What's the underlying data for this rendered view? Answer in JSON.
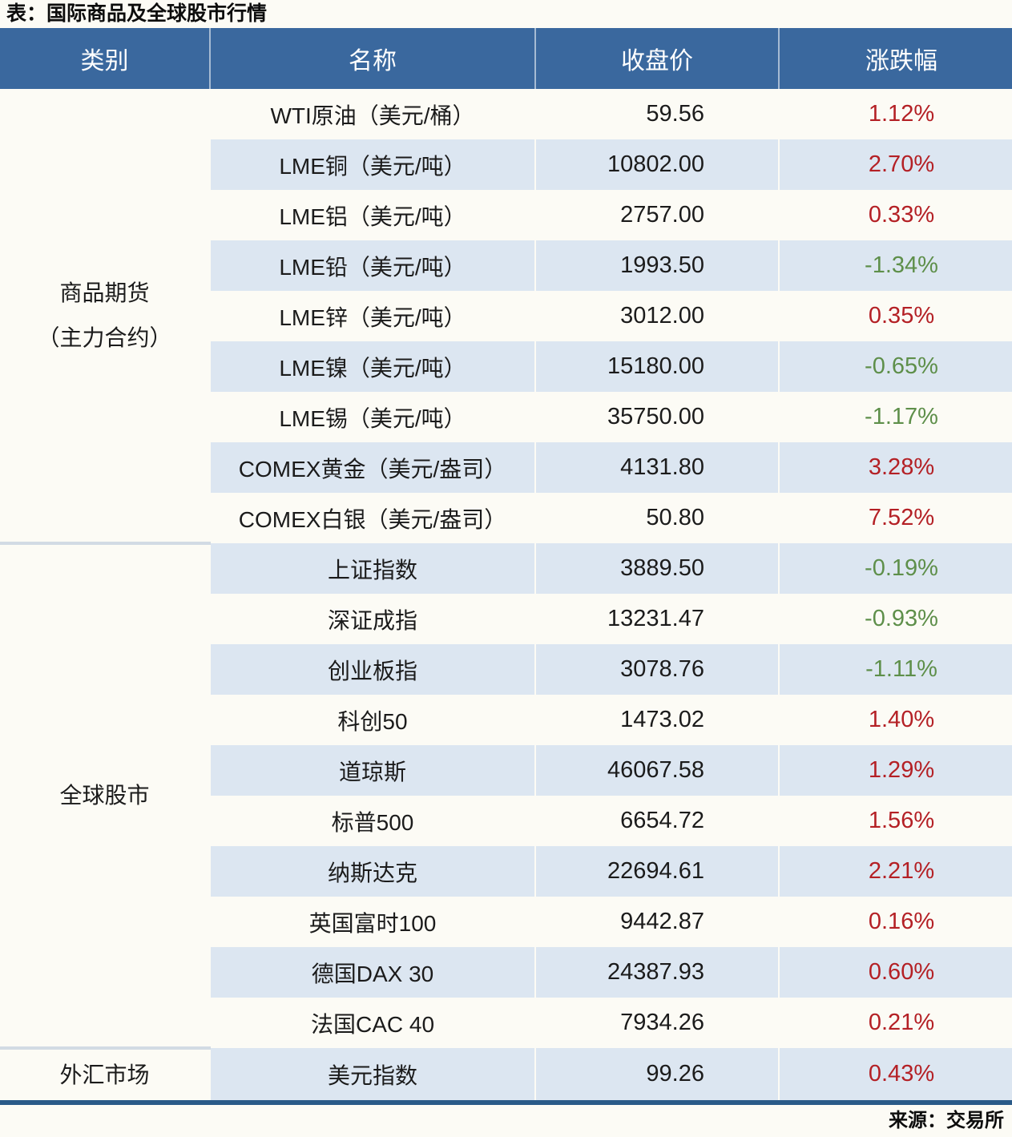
{
  "chart_data": {
    "type": "table",
    "title": "表：国际商品及全球股市行情",
    "source": "来源：交易所",
    "columns": [
      "类别",
      "名称",
      "收盘价",
      "涨跌幅"
    ],
    "colors": {
      "header_bg": "#3a689e",
      "stripe": "#dce6f1",
      "up": "#b42025",
      "down": "#5e8f4a",
      "bottom_border": "#2a5a88",
      "page_bg": "#fcfbf5"
    },
    "groups": [
      {
        "category": "商品期货\n（主力合约）",
        "rows": [
          {
            "name": "WTI原油（美元/桶）",
            "close": "59.56",
            "change": "1.12%",
            "trend": "up"
          },
          {
            "name": "LME铜（美元/吨）",
            "close": "10802.00",
            "change": "2.70%",
            "trend": "up"
          },
          {
            "name": "LME铝（美元/吨）",
            "close": "2757.00",
            "change": "0.33%",
            "trend": "up"
          },
          {
            "name": "LME铅（美元/吨）",
            "close": "1993.50",
            "change": "-1.34%",
            "trend": "down"
          },
          {
            "name": "LME锌（美元/吨）",
            "close": "3012.00",
            "change": "0.35%",
            "trend": "up"
          },
          {
            "name": "LME镍（美元/吨）",
            "close": "15180.00",
            "change": "-0.65%",
            "trend": "down"
          },
          {
            "name": "LME锡（美元/吨）",
            "close": "35750.00",
            "change": "-1.17%",
            "trend": "down"
          },
          {
            "name": "COMEX黄金（美元/盎司）",
            "close": "4131.80",
            "change": "3.28%",
            "trend": "up"
          },
          {
            "name": "COMEX白银（美元/盎司）",
            "close": "50.80",
            "change": "7.52%",
            "trend": "up"
          }
        ]
      },
      {
        "category": "全球股市",
        "rows": [
          {
            "name": "上证指数",
            "close": "3889.50",
            "change": "-0.19%",
            "trend": "down"
          },
          {
            "name": "深证成指",
            "close": "13231.47",
            "change": "-0.93%",
            "trend": "down"
          },
          {
            "name": "创业板指",
            "close": "3078.76",
            "change": "-1.11%",
            "trend": "down"
          },
          {
            "name": "科创50",
            "close": "1473.02",
            "change": "1.40%",
            "trend": "up"
          },
          {
            "name": "道琼斯",
            "close": "46067.58",
            "change": "1.29%",
            "trend": "up"
          },
          {
            "name": "标普500",
            "close": "6654.72",
            "change": "1.56%",
            "trend": "up"
          },
          {
            "name": "纳斯达克",
            "close": "22694.61",
            "change": "2.21%",
            "trend": "up"
          },
          {
            "name": "英国富时100",
            "close": "9442.87",
            "change": "0.16%",
            "trend": "up"
          },
          {
            "name": "德国DAX 30",
            "close": "24387.93",
            "change": "0.60%",
            "trend": "up"
          },
          {
            "name": "法国CAC 40",
            "close": "7934.26",
            "change": "0.21%",
            "trend": "up"
          }
        ]
      },
      {
        "category": "外汇市场",
        "rows": [
          {
            "name": "美元指数",
            "close": "99.26",
            "change": "0.43%",
            "trend": "up"
          }
        ]
      }
    ]
  }
}
